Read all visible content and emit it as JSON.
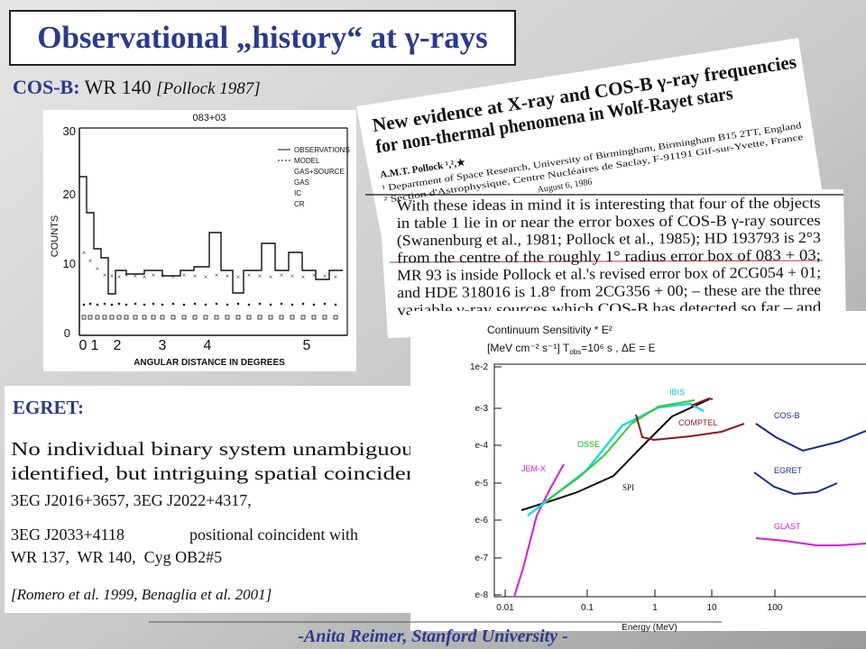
{
  "title": "Observational „history“ at γ-rays",
  "cosb": {
    "label": "COS-B:",
    "source": "WR 140",
    "reference": "[Pollock 1987]",
    "figure": {
      "title": "083+03",
      "y_label": "COUNTS",
      "x_label": "ANGULAR DISTANCE IN DEGREES",
      "y_ticks": [
        "0",
        "10",
        "20",
        "30"
      ],
      "x_ticks": [
        "0",
        "1",
        "2",
        "3",
        "4",
        "5"
      ],
      "legend": [
        "OBSERVATIONS",
        "MODEL",
        "GAS+SOURCE",
        "GAS",
        "IC",
        "CR"
      ]
    }
  },
  "paper": {
    "title_lines": [
      "New evidence at X-ray and COS-B γ-ray frequencies",
      "for non-thermal phenomena in Wolf-Rayet stars"
    ],
    "author": "A.M.T. Pollock ¹,²,★",
    "affiliations": [
      "¹ Department of Space Research, University of Birmingham, Birmingham B15 2TT, England",
      "² Section d'Astrophysique, Centre Nucléaires de Saclay, F-91191 Gif-sur-Yvette, France"
    ],
    "received": "August 6, 1986",
    "body_lines": [
      "With these ideas in mind it is interesting that four of the objects",
      "in table 1 lie in or near the error boxes of COS-B γ-ray sources",
      "(Swanenburg et al., 1981; Pollock et al., 1985); HD 193793 is 2°3",
      "from the centre of the roughly 1° radius error box of 083 + 03;",
      "MR 93 is inside Pollock et al.'s revised error box of 2CG054 + 01;",
      "and HDE 318016 is 1.8° from 2CG356 + 00; – these are the three",
      "variable γ-ray sources which COS-B has detected so far – and"
    ]
  },
  "egret": {
    "label": "EGRET:",
    "lines": [
      "No individual binary system unambiguously",
      "identified, but intriguing spatial coincidences:"
    ],
    "sources": [
      "3EG J2016+3657, 3EG J2022+4317,",
      "3EG J2033+4118"
    ],
    "coincidence": "positional coincident with",
    "objects": "WR 137,  WR 140,  Cyg OB2#5",
    "reference": "[Romero et al. 1999, Benaglia et al. 2001]"
  },
  "sensitivity": {
    "title": "Continuum Sensitivity * E²",
    "units": "[MeV cm⁻² s⁻¹]",
    "conditions": [
      "T",
      "obs",
      "=10⁶ s , ΔE = E"
    ],
    "y_ticks": [
      "1e-2",
      "e-3",
      "e-4",
      "e-5",
      "e-6",
      "e-7",
      "e-8"
    ],
    "x_ticks": [
      "0.01",
      "0.1",
      "1",
      "10",
      "100"
    ],
    "x_label": "Energy (MeV)",
    "instruments": [
      "IBIS",
      "COMPTEL",
      "COS-B",
      "OSSE",
      "EGRET",
      "JEM-X",
      "SPI",
      "GLAST"
    ]
  },
  "footer": "-Anita Reimer, Stanford University -"
}
